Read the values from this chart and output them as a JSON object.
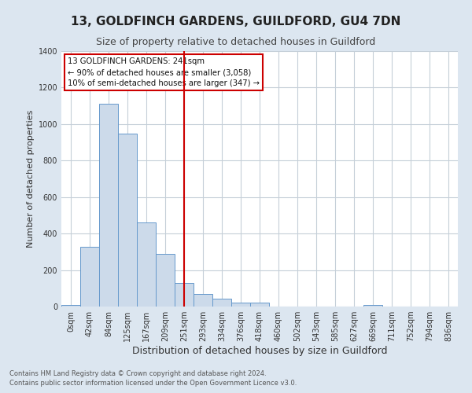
{
  "title": "13, GOLDFINCH GARDENS, GUILDFORD, GU4 7DN",
  "subtitle": "Size of property relative to detached houses in Guildford",
  "xlabel": "Distribution of detached houses by size in Guildford",
  "ylabel": "Number of detached properties",
  "footnote1": "Contains HM Land Registry data © Crown copyright and database right 2024.",
  "footnote2": "Contains public sector information licensed under the Open Government Licence v3.0.",
  "bar_labels": [
    "0sqm",
    "42sqm",
    "84sqm",
    "125sqm",
    "167sqm",
    "209sqm",
    "251sqm",
    "293sqm",
    "334sqm",
    "376sqm",
    "418sqm",
    "460sqm",
    "502sqm",
    "543sqm",
    "585sqm",
    "627sqm",
    "669sqm",
    "711sqm",
    "752sqm",
    "794sqm",
    "836sqm"
  ],
  "bar_values": [
    10,
    327,
    1113,
    948,
    463,
    288,
    128,
    70,
    45,
    20,
    20,
    0,
    0,
    0,
    0,
    0,
    7,
    0,
    0,
    0,
    0
  ],
  "bar_color": "#ccdaea",
  "bar_edge_color": "#6699cc",
  "vline_x_index": 6,
  "vline_color": "#cc0000",
  "annotation_title": "13 GOLDFINCH GARDENS: 241sqm",
  "annotation_line1": "← 90% of detached houses are smaller (3,058)",
  "annotation_line2": "10% of semi-detached houses are larger (347) →",
  "annotation_box_facecolor": "#ffffff",
  "annotation_box_edgecolor": "#cc0000",
  "ylim": [
    0,
    1400
  ],
  "yticks": [
    0,
    200,
    400,
    600,
    800,
    1000,
    1200,
    1400
  ],
  "background_color": "#dce6f0",
  "plot_bg_color": "#ffffff",
  "grid_color": "#c5cfd8",
  "title_fontsize": 11,
  "subtitle_fontsize": 9,
  "ylabel_fontsize": 8,
  "xlabel_fontsize": 9,
  "tick_fontsize": 7,
  "footnote_fontsize": 6
}
